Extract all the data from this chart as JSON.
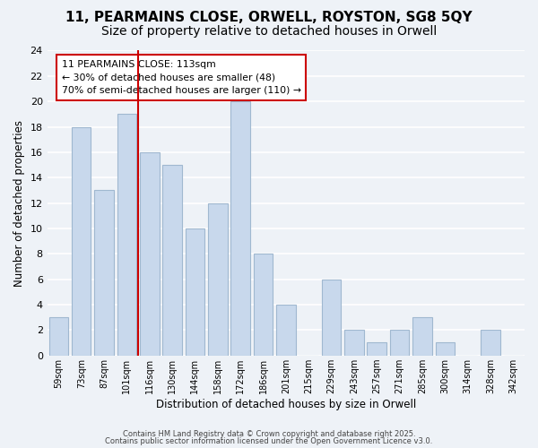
{
  "title": "11, PEARMAINS CLOSE, ORWELL, ROYSTON, SG8 5QY",
  "subtitle": "Size of property relative to detached houses in Orwell",
  "xlabel": "Distribution of detached houses by size in Orwell",
  "ylabel": "Number of detached properties",
  "bar_color": "#c8d8ec",
  "bar_edgecolor": "#a0b8d0",
  "bin_labels": [
    "59sqm",
    "73sqm",
    "87sqm",
    "101sqm",
    "116sqm",
    "130sqm",
    "144sqm",
    "158sqm",
    "172sqm",
    "186sqm",
    "201sqm",
    "215sqm",
    "229sqm",
    "243sqm",
    "257sqm",
    "271sqm",
    "285sqm",
    "300sqm",
    "314sqm",
    "328sqm",
    "342sqm"
  ],
  "values": [
    3,
    18,
    13,
    19,
    16,
    15,
    10,
    12,
    20,
    8,
    4,
    0,
    6,
    2,
    1,
    2,
    3,
    1,
    0,
    2,
    0
  ],
  "ylim": [
    0,
    24
  ],
  "yticks": [
    0,
    2,
    4,
    6,
    8,
    10,
    12,
    14,
    16,
    18,
    20,
    22,
    24
  ],
  "vline_color": "#cc0000",
  "annotation_title": "11 PEARMAINS CLOSE: 113sqm",
  "annotation_line1": "← 30% of detached houses are smaller (48)",
  "annotation_line2": "70% of semi-detached houses are larger (110) →",
  "annotation_box_edgecolor": "#cc0000",
  "annotation_box_facecolor": "#ffffff",
  "footer1": "Contains HM Land Registry data © Crown copyright and database right 2025.",
  "footer2": "Contains public sector information licensed under the Open Government Licence v3.0.",
  "background_color": "#eef2f7",
  "grid_color": "#ffffff",
  "title_fontsize": 11,
  "subtitle_fontsize": 10
}
